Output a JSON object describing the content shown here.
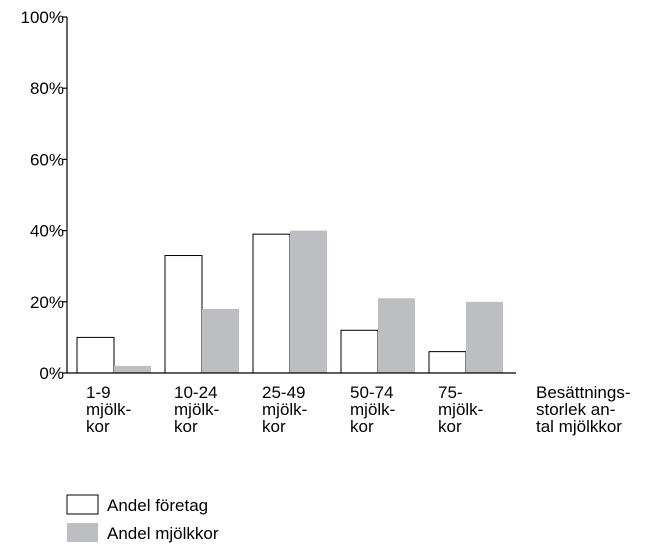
{
  "chart_data": {
    "type": "bar",
    "categories": [
      [
        "1-9",
        "mjölk-",
        "kor"
      ],
      [
        "10-24",
        "mjölk-",
        "kor"
      ],
      [
        "25-49",
        "mjölk-",
        "kor"
      ],
      [
        "50-74",
        "mjölk-",
        "kor"
      ],
      [
        "75-",
        "mjölk-",
        "kor"
      ]
    ],
    "series": [
      {
        "name": "Andel företag",
        "color": "#ffffff",
        "values": [
          10,
          33,
          39,
          12,
          6
        ]
      },
      {
        "name": "Andel mjölkkor",
        "color": "#bdbec1",
        "values": [
          2,
          18,
          40,
          21,
          20
        ]
      }
    ],
    "xlabel": [
      "Besättnings-",
      "storlek an-",
      "tal mjölkkor"
    ],
    "ylabel": "",
    "yticks": [
      "0%",
      "20%",
      "40%",
      "60%",
      "80%",
      "100%"
    ],
    "ylim": [
      0,
      100
    ],
    "grid": false,
    "legend_position": "bottom-left"
  }
}
